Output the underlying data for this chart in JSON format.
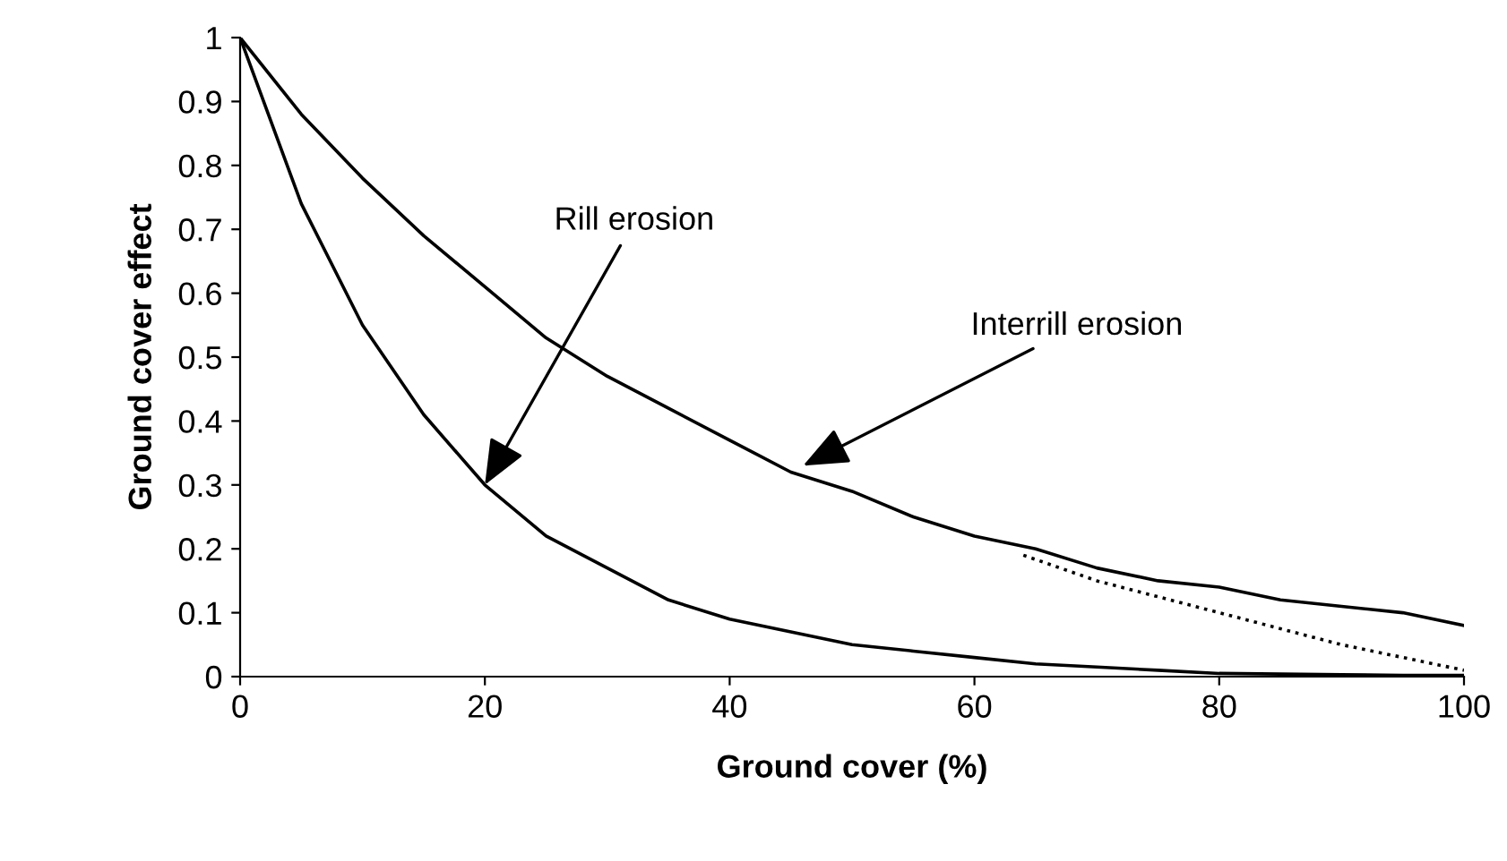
{
  "chart_data": {
    "type": "line",
    "xlabel": "Ground cover (%)",
    "ylabel": "Ground cover effect",
    "xlim": [
      0,
      100
    ],
    "ylim": [
      0,
      1
    ],
    "xticks": [
      0,
      20,
      40,
      60,
      80,
      100
    ],
    "yticks": [
      0,
      0.1,
      0.2,
      0.3,
      0.4,
      0.5,
      0.6,
      0.7,
      0.8,
      0.9,
      1
    ],
    "grid": false,
    "legend": false,
    "series": [
      {
        "color": "#000000",
        "line_style": "solid",
        "x": [
          0,
          5,
          10,
          15,
          20,
          25,
          30,
          35,
          40,
          45,
          50,
          55,
          60,
          65,
          70,
          75,
          80,
          85,
          90,
          95,
          100
        ],
        "values": [
          1,
          0.88,
          0.78,
          0.69,
          0.61,
          0.53,
          0.47,
          0.42,
          0.37,
          0.32,
          0.29,
          0.25,
          0.22,
          0.2,
          0.17,
          0.15,
          0.14,
          0.12,
          0.11,
          0.1,
          0.08
        ]
      },
      {
        "color": "#000000",
        "line_style": "solid",
        "x": [
          0,
          5,
          10,
          15,
          20,
          25,
          30,
          35,
          40,
          45,
          50,
          55,
          60,
          65,
          70,
          75,
          80,
          85,
          90,
          95,
          100
        ],
        "values": [
          1,
          0.74,
          0.55,
          0.41,
          0.3,
          0.22,
          0.17,
          0.12,
          0.09,
          0.07,
          0.05,
          0.04,
          0.03,
          0.02,
          0.015,
          0.01,
          0.005,
          0.004,
          0.003,
          0.002,
          0.002
        ]
      },
      {
        "color": "#000000",
        "line_style": "dotted",
        "x": [
          64,
          70,
          80,
          90,
          100
        ],
        "values": [
          0.19,
          0.15,
          0.1,
          0.05,
          0.01
        ]
      }
    ],
    "annotations": [
      {
        "text": "Rill erosion",
        "x": 20,
        "y": 0.3
      },
      {
        "text": "Interrill erosion",
        "x": 46,
        "y": 0.33
      }
    ]
  }
}
